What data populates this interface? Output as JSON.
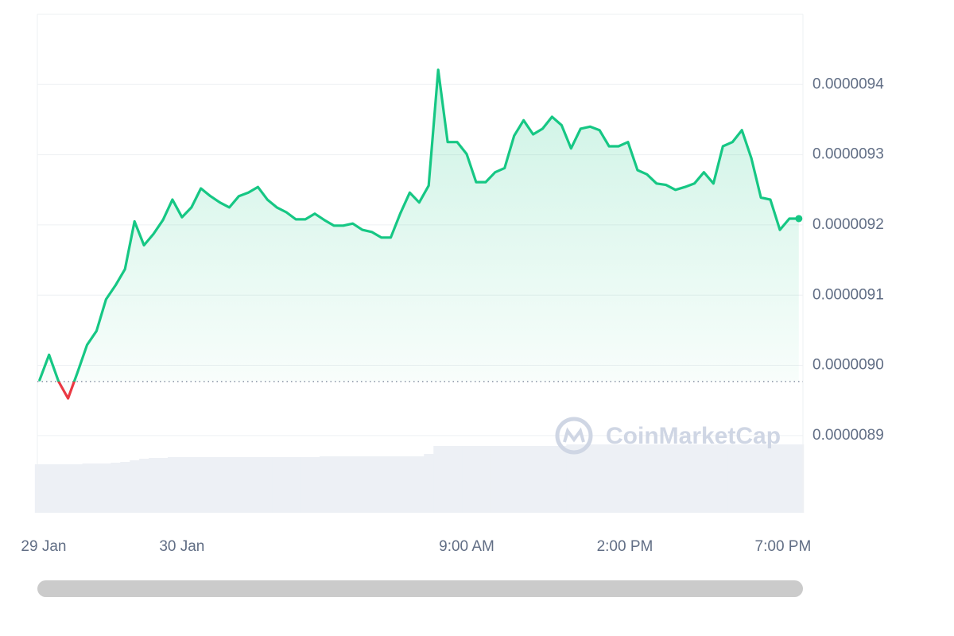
{
  "chart_data": {
    "type": "line",
    "color": "#16c784",
    "down_color": "#ea3943",
    "baseline": 8.977e-06,
    "watermark": "CoinMarketCap",
    "xlim": [
      -4.57,
      19.63
    ],
    "ylim": [
      8.79e-06,
      9.5e-06
    ],
    "xticks": [
      {
        "value": -4.37,
        "label": "29 Jan"
      },
      {
        "value": 0,
        "label": "30 Jan"
      },
      {
        "value": 9,
        "label": "9:00 AM"
      },
      {
        "value": 14,
        "label": "2:00 PM"
      },
      {
        "value": 19,
        "label": "7:00 PM"
      }
    ],
    "yticks": [
      {
        "value": 8.9e-06,
        "label": "0.0000089"
      },
      {
        "value": 9e-06,
        "label": "0.0000090"
      },
      {
        "value": 9.1e-06,
        "label": "0.0000091"
      },
      {
        "value": 9.2e-06,
        "label": "0.0000092"
      },
      {
        "value": 9.3e-06,
        "label": "0.0000093"
      },
      {
        "value": 9.4e-06,
        "label": "0.0000094"
      }
    ],
    "grid": true,
    "x": [
      -4.5,
      -4.2,
      -3.9,
      -3.6,
      -3.3,
      -3.0,
      -2.7,
      -2.4,
      -2.1,
      -1.8,
      -1.5,
      -1.2,
      -0.9,
      -0.6,
      -0.3,
      0,
      0.3,
      0.6,
      0.9,
      1.2,
      1.5,
      1.8,
      2.1,
      2.4,
      2.7,
      3.0,
      3.3,
      3.6,
      3.9,
      4.2,
      4.5,
      4.8,
      5.1,
      5.4,
      5.7,
      6.0,
      6.3,
      6.6,
      6.9,
      7.2,
      7.5,
      7.8,
      8.1,
      8.4,
      8.7,
      9.0,
      9.3,
      9.6,
      9.9,
      10.2,
      10.5,
      10.8,
      11.1,
      11.4,
      11.7,
      12.0,
      12.3,
      12.6,
      12.9,
      13.2,
      13.5,
      13.8,
      14.1,
      14.4,
      14.7,
      15.0,
      15.3,
      15.6,
      15.9,
      16.2,
      16.5,
      16.8,
      17.1,
      17.4,
      17.7,
      18.0,
      18.3,
      18.6,
      18.9,
      19.2,
      19.5
    ],
    "values": [
      8.979e-06,
      9.015e-06,
      8.977e-06,
      8.953e-06,
      8.99e-06,
      9.029e-06,
      9.049e-06,
      9.094e-06,
      9.114e-06,
      9.137e-06,
      9.205e-06,
      9.171e-06,
      9.187e-06,
      9.207e-06,
      9.236e-06,
      9.211e-06,
      9.225e-06,
      9.252e-06,
      9.241e-06,
      9.232e-06,
      9.225e-06,
      9.241e-06,
      9.246e-06,
      9.254e-06,
      9.236e-06,
      9.225e-06,
      9.218e-06,
      9.208e-06,
      9.208e-06,
      9.216e-06,
      9.207e-06,
      9.199e-06,
      9.199e-06,
      9.202e-06,
      9.193e-06,
      9.19e-06,
      9.182e-06,
      9.182e-06,
      9.216e-06,
      9.246e-06,
      9.232e-06,
      9.256e-06,
      9.421e-06,
      9.318e-06,
      9.318e-06,
      9.301e-06,
      9.261e-06,
      9.261e-06,
      9.275e-06,
      9.281e-06,
      9.327e-06,
      9.349e-06,
      9.329e-06,
      9.337e-06,
      9.354e-06,
      9.342e-06,
      9.309e-06,
      9.337e-06,
      9.34e-06,
      9.335e-06,
      9.312e-06,
      9.312e-06,
      9.318e-06,
      9.278e-06,
      9.272e-06,
      9.259e-06,
      9.257e-06,
      9.25e-06,
      9.254e-06,
      9.259e-06,
      9.275e-06,
      9.259e-06,
      9.312e-06,
      9.318e-06,
      9.335e-06,
      9.295e-06,
      9.239e-06,
      9.236e-06,
      9.193e-06,
      9.209e-06,
      9.209e-06
    ],
    "volume_color": "#edf0f5",
    "volume_lim": [
      0,
      100
    ],
    "volume": [
      61,
      61,
      61,
      61,
      61,
      62,
      62,
      62,
      63,
      64,
      66,
      68,
      69,
      69,
      70,
      70,
      70,
      70,
      70,
      70,
      70,
      70,
      70,
      70,
      70,
      70,
      70,
      70,
      70,
      70,
      71,
      71,
      71,
      71,
      71,
      71,
      71,
      71,
      71,
      71,
      71,
      74,
      84,
      84,
      84,
      84,
      84,
      84,
      84,
      84,
      84,
      84,
      84,
      84,
      84,
      84,
      86,
      86,
      86,
      86,
      86,
      86,
      86,
      86,
      86,
      86,
      86,
      86,
      86,
      86,
      86,
      86,
      86,
      86,
      86,
      86,
      86,
      86,
      86,
      86,
      86
    ]
  }
}
